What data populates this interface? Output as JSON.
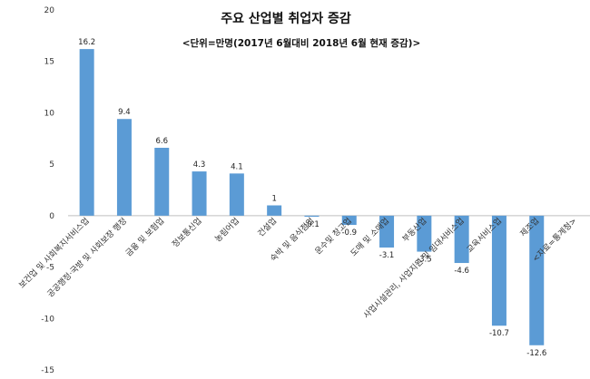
{
  "chart_data": {
    "type": "bar",
    "title": "주요 산업별 취업자 증감",
    "subtitle": "<단위=만명(2017년 6월대비 2018년 6월 현재 증감)>",
    "categories": [
      "보건업 및 사회복지서비스업",
      "공공행정·국방 및 사회보장 행정",
      "금융 및 보험업",
      "정보통신업",
      "농림어업",
      "건설업",
      "숙박 및 음식점업",
      "운수및 창고업",
      "도매 및 소매업",
      "부동산업",
      "사업시설관리, 사업지원 및 임대서비스업",
      "교육서비스업",
      "제조업",
      "<자료=통계청>"
    ],
    "values": [
      16.2,
      9.4,
      6.6,
      4.3,
      4.1,
      1,
      -0.1,
      -0.9,
      -3.1,
      -3.5,
      -4.6,
      -10.7,
      -12.6,
      null
    ],
    "data_labels": [
      "16.2",
      "9.4",
      "6.6",
      "4.3",
      "4.1",
      "1",
      "-0.1",
      "-0.9",
      "-3.1",
      "-3.5",
      "-4.6",
      "-10.7",
      "-12.6",
      ""
    ],
    "ylim": [
      -15,
      20
    ],
    "yticks": [
      "20",
      "15",
      "10",
      "5",
      "0",
      "-5",
      "-10",
      "-15"
    ],
    "ytick_values": [
      20,
      15,
      10,
      5,
      0,
      -5,
      -10,
      -15
    ],
    "xlabel": "",
    "ylabel": "",
    "bar_color": "#5B9BD5",
    "grid": false,
    "legend": "none"
  }
}
